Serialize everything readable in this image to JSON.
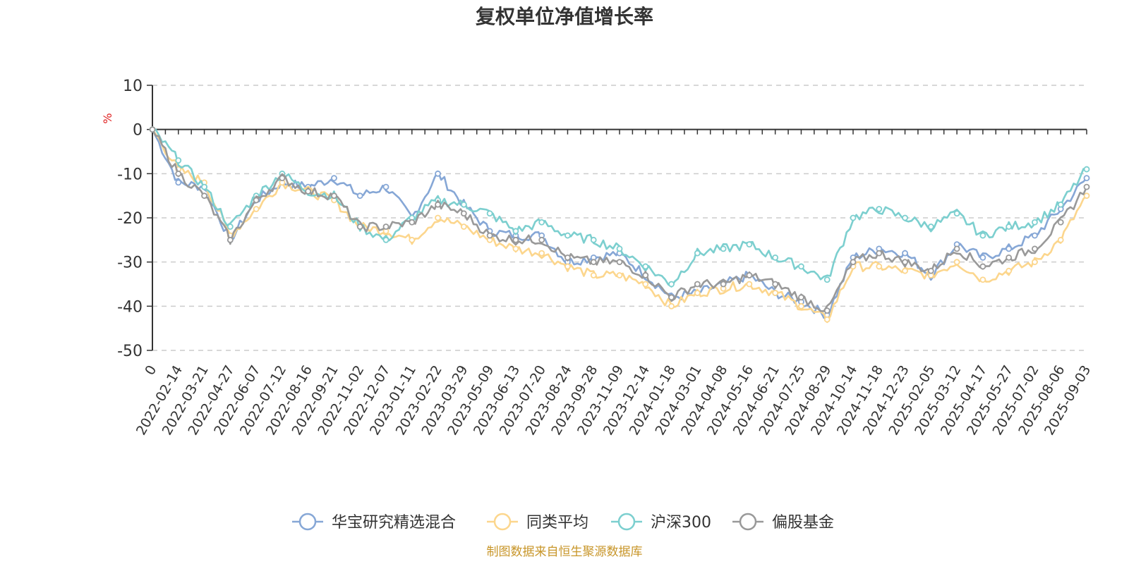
{
  "chart_data": {
    "type": "line",
    "title": "复权单位净值增长率",
    "ylabel": "%",
    "ylim": [
      -50,
      10
    ],
    "yticks": [
      10,
      0,
      -10,
      -20,
      -30,
      -40,
      -50
    ],
    "categories": [
      "0",
      "2022-02-14",
      "2022-03-21",
      "2022-04-27",
      "2022-06-07",
      "2022-07-12",
      "2022-08-16",
      "2022-09-21",
      "2022-11-02",
      "2022-12-07",
      "2023-01-11",
      "2023-02-22",
      "2023-03-29",
      "2023-05-09",
      "2023-06-13",
      "2023-07-20",
      "2023-08-24",
      "2023-09-28",
      "2023-11-09",
      "2023-12-14",
      "2024-01-18",
      "2024-03-01",
      "2024-04-08",
      "2024-05-16",
      "2024-06-21",
      "2024-07-25",
      "2024-08-29",
      "2024-10-14",
      "2024-11-18",
      "2024-12-23",
      "2025-02-05",
      "2025-03-12",
      "2025-04-17",
      "2025-05-27",
      "2025-07-02",
      "2025-08-06",
      "2025-09-03"
    ],
    "grid": "horizontal-dashed",
    "legend_position": "bottom",
    "series": [
      {
        "name": "华宝研究精选混合",
        "color": "#86a7d6",
        "values": [
          0,
          -12,
          -13,
          -25,
          -16,
          -12,
          -13,
          -11,
          -15,
          -13,
          -20,
          -10,
          -17,
          -23,
          -24,
          -24,
          -30,
          -29,
          -28,
          -33,
          -38,
          -37,
          -35,
          -33,
          -37,
          -39,
          -42,
          -29,
          -27,
          -28,
          -33,
          -26,
          -29,
          -27,
          -24,
          -18,
          -11
        ]
      },
      {
        "name": "同类平均",
        "color": "#fcd68d",
        "values": [
          0,
          -9,
          -12,
          -24,
          -18,
          -12,
          -14,
          -16,
          -22,
          -23,
          -25,
          -20,
          -22,
          -25,
          -27,
          -28,
          -31,
          -33,
          -33,
          -35,
          -40,
          -37,
          -36,
          -35,
          -37,
          -40,
          -43,
          -31,
          -31,
          -32,
          -33,
          -30,
          -34,
          -32,
          -30,
          -25,
          -15
        ]
      },
      {
        "name": "沪深300",
        "color": "#7ccfcf",
        "values": [
          0,
          -7,
          -13,
          -22,
          -15,
          -10,
          -14,
          -15,
          -22,
          -25,
          -20,
          -16,
          -17,
          -19,
          -23,
          -21,
          -24,
          -25,
          -27,
          -31,
          -35,
          -28,
          -27,
          -26,
          -29,
          -31,
          -34,
          -20,
          -18,
          -20,
          -22,
          -19,
          -24,
          -22,
          -21,
          -17,
          -9
        ]
      },
      {
        "name": "偏股基金",
        "color": "#999999",
        "values": [
          0,
          -10,
          -15,
          -25,
          -16,
          -11,
          -14,
          -15,
          -22,
          -22,
          -21,
          -17,
          -19,
          -24,
          -25,
          -25,
          -29,
          -30,
          -30,
          -33,
          -38,
          -35,
          -35,
          -33,
          -35,
          -38,
          -41,
          -30,
          -28,
          -30,
          -32,
          -27,
          -31,
          -29,
          -27,
          -21,
          -13
        ]
      }
    ]
  },
  "source_note": "制图数据来自恒生聚源数据库"
}
